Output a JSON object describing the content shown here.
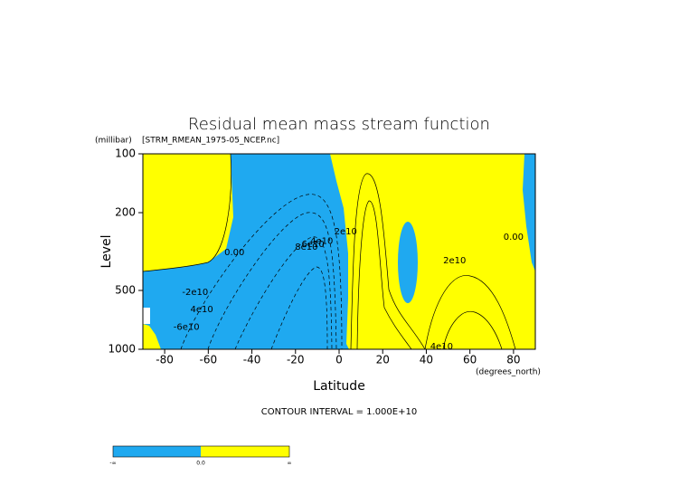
{
  "chart_data": {
    "type": "contour",
    "title": "Residual mean mass stream function",
    "subtitle": "[STRM_RMEAN_1975-05_NCEP.nc]",
    "y_unit": "(millibar)",
    "x_unit": "(degrees_north)",
    "xlabel": "Latitude",
    "ylabel": "Level",
    "footer": "CONTOUR INTERVAL = 1.000E+10",
    "xlim": [
      -90,
      90
    ],
    "xticks": [
      -80,
      -60,
      -40,
      -20,
      0,
      20,
      40,
      60,
      80
    ],
    "ylim": [
      1000,
      100
    ],
    "yticks": [
      100,
      200,
      500,
      1000
    ],
    "yscale": "log",
    "colors": {
      "negative": "#1fa9f0",
      "positive": "#ffff00"
    },
    "contour_labels": [
      {
        "text": "0.00",
        "x": -48,
        "y": 320
      },
      {
        "text": "-2e10",
        "x": -66,
        "y": 510
      },
      {
        "text": "4e10",
        "x": -63,
        "y": 625
      },
      {
        "text": "-6e10",
        "x": -70,
        "y": 770
      },
      {
        "text": "8e10",
        "x": -15,
        "y": 300
      },
      {
        "text": "6e10",
        "x": -12,
        "y": 290
      },
      {
        "text": "4e10",
        "x": -8,
        "y": 280
      },
      {
        "text": "2e10",
        "x": 3,
        "y": 250
      },
      {
        "text": "2e10",
        "x": 53,
        "y": 351
      },
      {
        "text": "0.00",
        "x": 80,
        "y": 267
      },
      {
        "text": "4e10",
        "x": 47,
        "y": 967
      }
    ],
    "colorbar": {
      "labels": [
        "-∞",
        "0.0",
        "∞"
      ]
    }
  }
}
